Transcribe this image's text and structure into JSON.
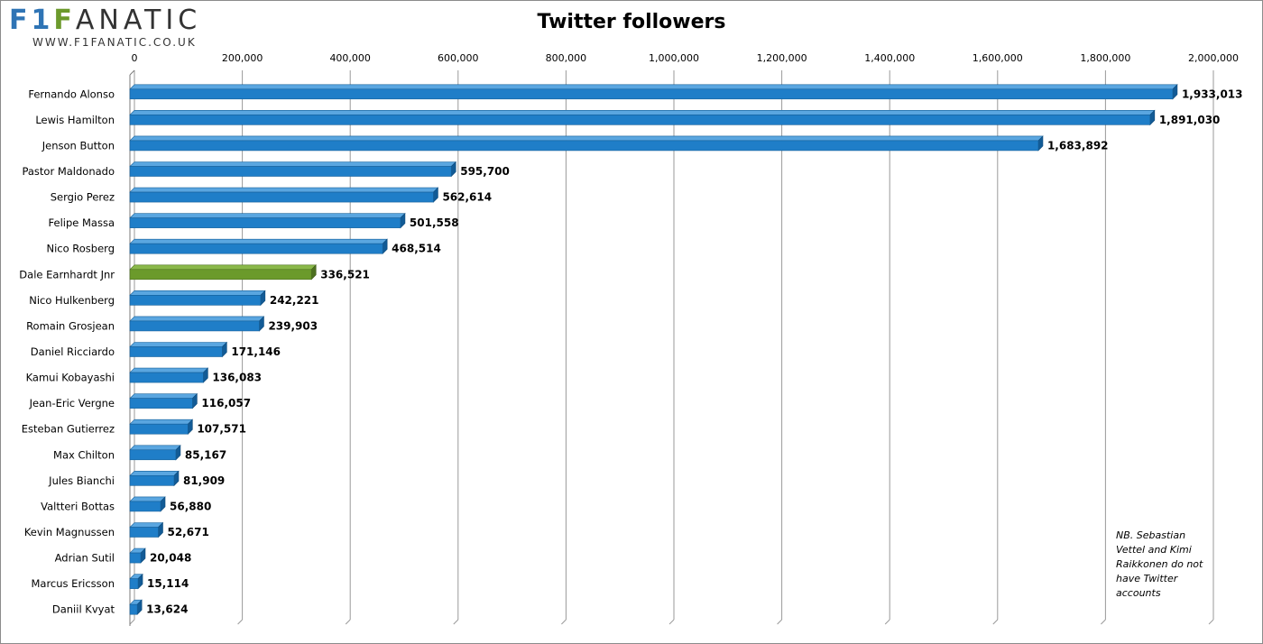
{
  "logo": {
    "brand_part1": "F1",
    "brand_part2": "F",
    "brand_part3": "ANATIC",
    "url": "WWW.F1FANATIC.CO.UK"
  },
  "note": "NB. Sebastian Vettel and Kimi Raikkonen do not have Twitter accounts",
  "colors": {
    "bar": "#1f7ec8",
    "bar_highlight": "#6b9a2b",
    "grid": "#9a9a9a"
  },
  "chart_data": {
    "type": "bar",
    "orientation": "horizontal",
    "title": "Twitter followers",
    "xlim": [
      0,
      2000000
    ],
    "ticks": [
      0,
      200000,
      400000,
      600000,
      800000,
      1000000,
      1200000,
      1400000,
      1600000,
      1800000,
      2000000
    ],
    "tick_labels": [
      "0",
      "200,000",
      "400,000",
      "600,000",
      "800,000",
      "1,000,000",
      "1,200,000",
      "1,400,000",
      "1,600,000",
      "1,800,000",
      "2,000,000"
    ],
    "x_axis_position": "top",
    "grid": true,
    "categories": [
      "Fernando Alonso",
      "Lewis Hamilton",
      "Jenson Button",
      "Pastor Maldonado",
      "Sergio Perez",
      "Felipe Massa",
      "Nico Rosberg",
      "Dale Earnhardt Jnr",
      "Nico Hulkenberg",
      "Romain Grosjean",
      "Daniel Ricciardo",
      "Kamui Kobayashi",
      "Jean-Eric Vergne",
      "Esteban Gutierrez",
      "Max Chilton",
      "Jules Bianchi",
      "Valtteri Bottas",
      "Kevin Magnussen",
      "Adrian Sutil",
      "Marcus Ericsson",
      "Daniil Kvyat"
    ],
    "values": [
      1933013,
      1891030,
      1683892,
      595700,
      562614,
      501558,
      468514,
      336521,
      242221,
      239903,
      171146,
      136083,
      116057,
      107571,
      85167,
      81909,
      56880,
      52671,
      20048,
      15114,
      13624
    ],
    "value_labels": [
      "1,933,013",
      "1,891,030",
      "1,683,892",
      "595,700",
      "562,614",
      "501,558",
      "468,514",
      "336,521",
      "242,221",
      "239,903",
      "171,146",
      "136,083",
      "116,057",
      "107,571",
      "85,167",
      "81,909",
      "56,880",
      "52,671",
      "20,048",
      "15,114",
      "13,624"
    ],
    "highlight": [
      "Dale Earnhardt Jnr"
    ]
  }
}
